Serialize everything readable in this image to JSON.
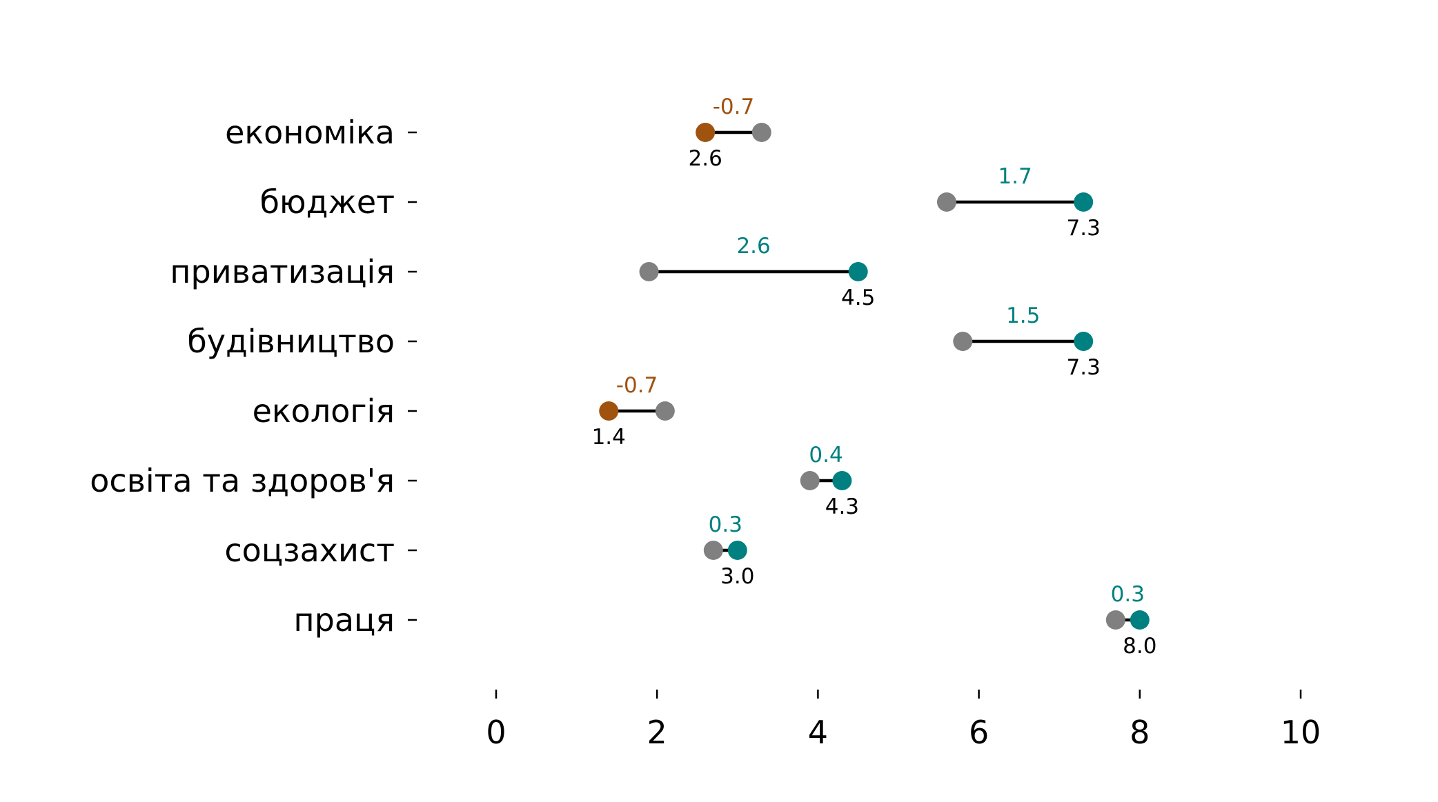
{
  "chart_data": {
    "type": "dumbbell",
    "title": "",
    "xlabel": "",
    "ylabel": "",
    "xlim": [
      0,
      10
    ],
    "xticks": [
      0,
      2,
      4,
      6,
      8,
      10
    ],
    "colors": {
      "before": "#808080",
      "increase": "#008080",
      "decrease": "#a0520f"
    },
    "grid": false,
    "rows": [
      {
        "category": "економіка",
        "before": 3.3,
        "after": 2.6,
        "after_label": "2.6",
        "diff_label": "-0.7"
      },
      {
        "category": "бюджет",
        "before": 5.6,
        "after": 7.3,
        "after_label": "7.3",
        "diff_label": "1.7"
      },
      {
        "category": "приватизація",
        "before": 1.9,
        "after": 4.5,
        "after_label": "4.5",
        "diff_label": "2.6"
      },
      {
        "category": "будівництво",
        "before": 5.8,
        "after": 7.3,
        "after_label": "7.3",
        "diff_label": "1.5"
      },
      {
        "category": "екологія",
        "before": 2.1,
        "after": 1.4,
        "after_label": "1.4",
        "diff_label": "-0.7"
      },
      {
        "category": "освіта та здоров'я",
        "before": 3.9,
        "after": 4.3,
        "after_label": "4.3",
        "diff_label": "0.4"
      },
      {
        "category": "соцзахист",
        "before": 2.7,
        "after": 3.0,
        "after_label": "3.0",
        "diff_label": "0.3"
      },
      {
        "category": "праця",
        "before": 7.7,
        "after": 8.0,
        "after_label": "8.0",
        "diff_label": "0.3"
      }
    ]
  }
}
